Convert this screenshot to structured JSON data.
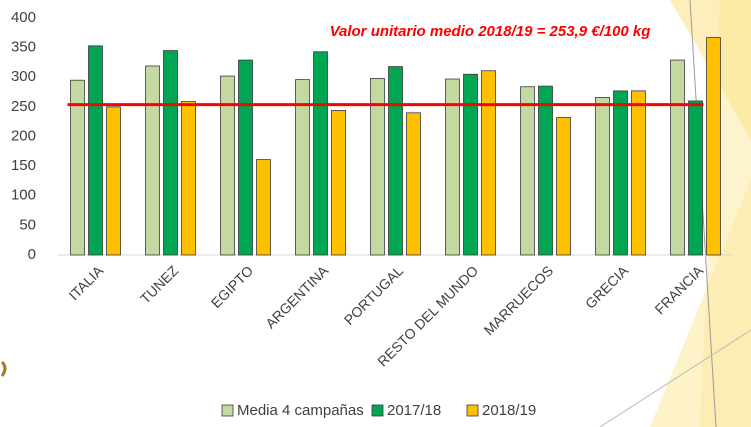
{
  "chart_data": {
    "type": "bar",
    "categories": [
      "ITALIA",
      "TUNEZ",
      "EGIPTO",
      "ARGENTINA",
      "PORTUGAL",
      "RESTO DEL MUNDO",
      "MARRUECOS",
      "GRECIA",
      "FRANCIA"
    ],
    "series": [
      {
        "name": "Media 4 campañas",
        "color": "#c4d9a2",
        "values": [
          295,
          319,
          302,
          296,
          298,
          297,
          284,
          266,
          329
        ]
      },
      {
        "name": "2017/18",
        "color": "#00a651",
        "values": [
          353,
          345,
          329,
          343,
          318,
          305,
          285,
          277,
          260
        ]
      },
      {
        "name": "2018/19",
        "color": "#ffc000",
        "values": [
          250,
          259,
          161,
          244,
          240,
          311,
          232,
          277,
          367
        ]
      }
    ],
    "reference_line": {
      "value": 253.9,
      "color": "#ff0000",
      "label": "Valor unitario medio 2018/19 = 253,9 €/100 kg"
    },
    "ylim": [
      0,
      400
    ],
    "yticks": [
      0,
      50,
      100,
      150,
      200,
      250,
      300,
      350,
      400
    ],
    "grid": false,
    "legend": "bottom"
  }
}
